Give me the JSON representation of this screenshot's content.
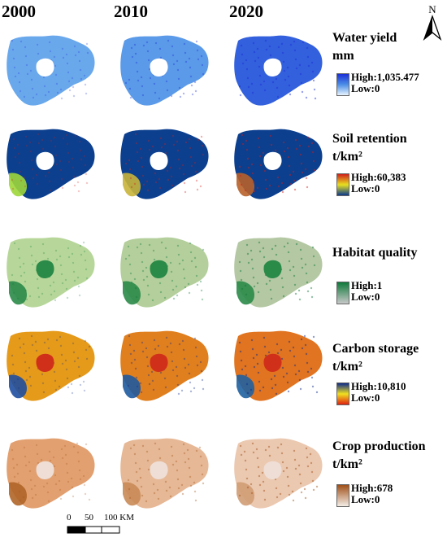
{
  "years": [
    "2000",
    "2010",
    "2020"
  ],
  "rows": [
    {
      "key": "water",
      "title_line1": "Water yield",
      "title_line2": "mm",
      "high": "High:1,035.477",
      "low": "Low:0",
      "colors": {
        "high": "#1a2fd6",
        "low": "#e8f4ff",
        "mid": "#4d8fe6"
      },
      "map_fill": [
        "#6aa8ec",
        "#5b9ae8",
        "#3360dc"
      ],
      "hole": "#ffffff"
    },
    {
      "key": "soil",
      "title_line1": "Soil retention",
      "title_line2": "t/km²",
      "high": "High:60,383",
      "low": "Low:0",
      "colors": {
        "high": "#d0201a",
        "mid": "#e8e020",
        "low": "#0a3b8c"
      },
      "map_fill": [
        "#0c3f8e",
        "#0c3f8e",
        "#0c3f8e"
      ],
      "accent": [
        "#9fd63a",
        "#c8b43a",
        "#b8602a"
      ],
      "hole": "#ffffff"
    },
    {
      "key": "habitat",
      "title_line1": "Habitat quality",
      "title_line2": "",
      "high": "High:1",
      "low": "Low:0",
      "colors": {
        "high": "#0f7a3a",
        "low": "#c8c8c8"
      },
      "map_fill": [
        "#b7d79a",
        "#b4cf9c",
        "#b4c8a4"
      ],
      "accent": [
        "#2a8a48",
        "#2a8a48",
        "#2a8a48"
      ],
      "hole": "#2a8a48"
    },
    {
      "key": "carbon",
      "title_line1": "Carbon storage",
      "title_line2": "t/km²",
      "high": "High:10,810",
      "low": "Low:0",
      "colors": {
        "high": "#0d2a8c",
        "mid": "#f0e020",
        "low": "#e02010"
      },
      "map_fill": [
        "#e59a1a",
        "#e07f1e",
        "#e07420"
      ],
      "accent": [
        "#1f4fa0",
        "#1f5aa0",
        "#2060a0"
      ],
      "hole": "#d0301a"
    },
    {
      "key": "crop",
      "title_line1": "Crop production",
      "title_line2": "t/km²",
      "high": "High:678",
      "low": "Low:0",
      "colors": {
        "high": "#a05018",
        "low": "#f4ece6"
      },
      "map_fill": [
        "#e2a070",
        "#e6b896",
        "#ebc8b0"
      ],
      "accent": [
        "#b06528",
        "#c98a56",
        "#d09c74"
      ],
      "hole": "#eeded6"
    }
  ],
  "north": {
    "label": "N"
  },
  "scale": {
    "labels": [
      "0",
      "50",
      "100 KM"
    ]
  }
}
